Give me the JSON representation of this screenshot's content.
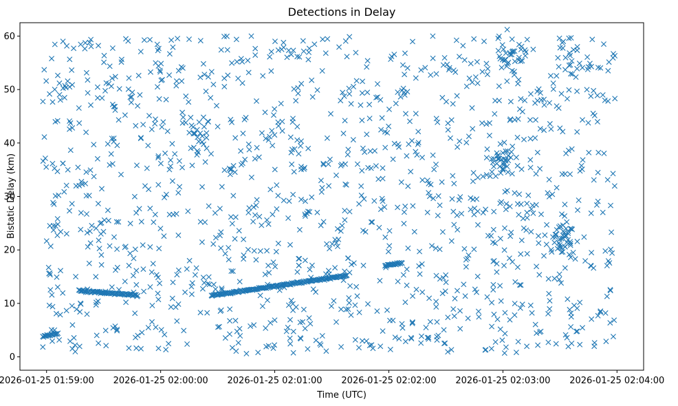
{
  "chart_data": {
    "type": "scatter",
    "title": "Detections in Delay",
    "xlabel": "Time (UTC)",
    "ylabel": "Bistatic Delay (km)",
    "marker": "x",
    "color": "#1f77b4",
    "grid": false,
    "legend": "none",
    "xlim": [
      "2026-01-25 01:58:46",
      "2026-01-25 02:04:14"
    ],
    "ylim": [
      -2.5,
      62.5
    ],
    "x_ticks": [
      "2026-01-25 01:59:00",
      "2026-01-25 02:00:00",
      "2026-01-25 02:01:00",
      "2026-01-25 02:02:00",
      "2026-01-25 02:03:00",
      "2026-01-25 02:04:00"
    ],
    "y_ticks": [
      0,
      10,
      20,
      30,
      40,
      50,
      60
    ],
    "track_segments": [
      {
        "x_start": "2026-01-25 01:59:17",
        "x_end": "2026-01-25 01:59:48",
        "y_start": 12.4,
        "y_end": 11.5
      },
      {
        "x_start": "2026-01-25 02:00:27",
        "x_end": "2026-01-25 02:01:38",
        "y_start": 11.5,
        "y_end": 15.2
      },
      {
        "x_start": "2026-01-25 01:58:58",
        "x_end": "2026-01-25 01:59:06",
        "y_start": 3.8,
        "y_end": 4.4
      },
      {
        "x_start": "2026-01-25 02:01:58",
        "x_end": "2026-01-25 02:02:07",
        "y_start": 17.0,
        "y_end": 17.6
      }
    ],
    "cluster_regions": [
      {
        "x_center": "2026-01-25 02:03:32",
        "y_center": 22.0,
        "count": 40
      },
      {
        "x_center": "2026-01-25 02:03:04",
        "y_center": 57.0,
        "count": 25
      },
      {
        "x_center": "2026-01-25 02:02:59",
        "y_center": 37.0,
        "count": 30
      },
      {
        "x_center": "2026-01-25 02:03:38",
        "y_center": 55.0,
        "count": 15
      },
      {
        "x_center": "2026-01-25 02:00:20",
        "y_center": 42.0,
        "count": 15
      }
    ],
    "noise": {
      "x_range": [
        "2026-01-25 01:58:58",
        "2026-01-25 02:03:59"
      ],
      "y_range": [
        0.5,
        60.0
      ],
      "count": 1300
    }
  }
}
